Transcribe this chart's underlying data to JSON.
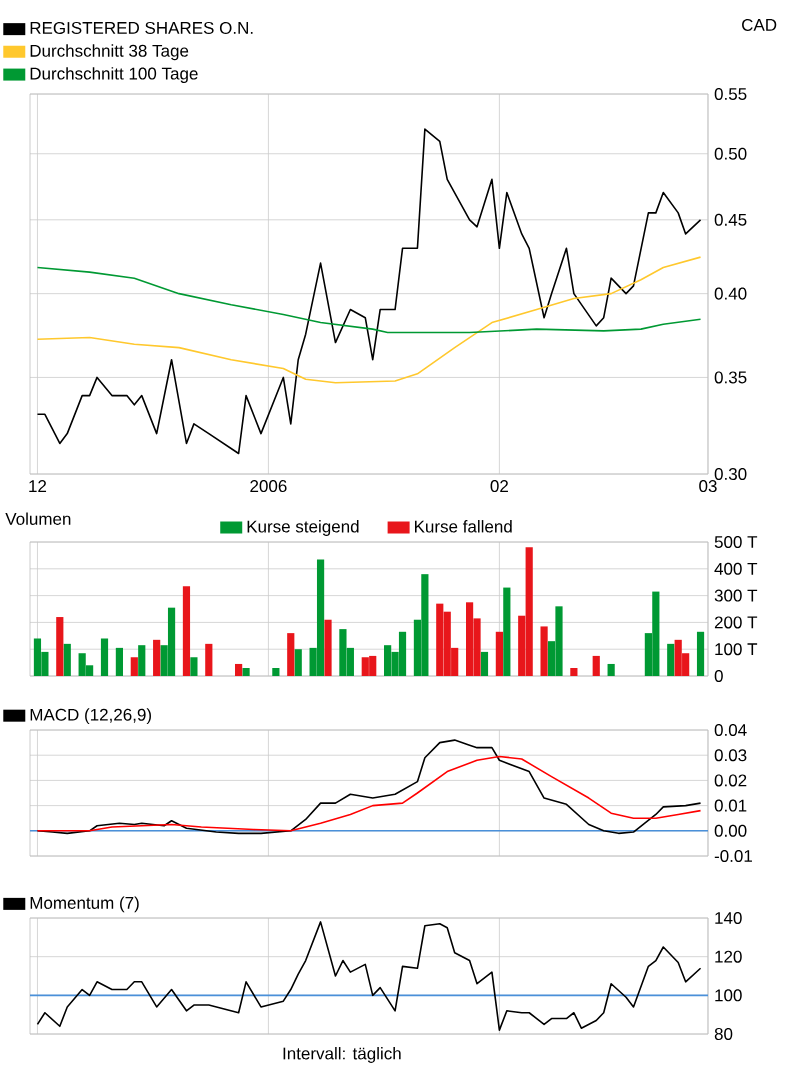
{
  "chart_data": [
    {
      "type": "line",
      "ylabel": "CAD",
      "log": "y",
      "grid": true,
      "legend": "top left",
      "marker": "none",
      "line_style": "solid",
      "xlim": [
        "2005-11-30",
        "2006-03-01"
      ],
      "xticks": [
        {
          "value": "2005-12-01",
          "label": "12"
        },
        {
          "value": "2006-01-01",
          "label": "2006"
        },
        {
          "value": "2006-02-01",
          "label": "02"
        },
        {
          "value": "2006-03-01",
          "label": "03"
        }
      ],
      "ylim": [
        0.3,
        0.55
      ],
      "yticks": [
        {
          "value": 0.3,
          "label": "0.30"
        },
        {
          "value": 0.35,
          "label": "0.35"
        },
        {
          "value": 0.4,
          "label": "0.40"
        },
        {
          "value": 0.45,
          "label": "0.45"
        },
        {
          "value": 0.5,
          "label": "0.50"
        },
        {
          "value": 0.55,
          "label": "0.55"
        }
      ],
      "series": [
        {
          "name": "REGISTERED SHARES O.N.",
          "color": "#000000",
          "x": [
            "2005-12-01",
            "2005-12-02",
            "2005-12-04",
            "2005-12-05",
            "2005-12-07",
            "2005-12-08",
            "2005-12-09",
            "2005-12-11",
            "2005-12-13",
            "2005-12-14",
            "2005-12-15",
            "2005-12-17",
            "2005-12-19",
            "2005-12-21",
            "2005-12-22",
            "2005-12-24",
            "2005-12-28",
            "2005-12-29",
            "2005-12-31",
            "2006-01-03",
            "2006-01-04",
            "2006-01-05",
            "2006-01-06",
            "2006-01-08",
            "2006-01-10",
            "2006-01-12",
            "2006-01-14",
            "2006-01-15",
            "2006-01-16",
            "2006-01-18",
            "2006-01-19",
            "2006-01-21",
            "2006-01-22",
            "2006-01-24",
            "2006-01-25",
            "2006-01-28",
            "2006-01-29",
            "2006-01-31",
            "2006-02-01",
            "2006-02-02",
            "2006-02-04",
            "2006-02-05",
            "2006-02-07",
            "2006-02-08",
            "2006-02-10",
            "2006-02-11",
            "2006-02-14",
            "2006-02-15",
            "2006-02-16",
            "2006-02-18",
            "2006-02-19",
            "2006-02-21",
            "2006-02-22",
            "2006-02-23",
            "2006-02-25",
            "2006-02-26",
            "2006-02-28"
          ],
          "values": [
            0.33,
            0.33,
            0.315,
            0.32,
            0.34,
            0.34,
            0.35,
            0.34,
            0.34,
            0.335,
            0.34,
            0.32,
            0.36,
            0.315,
            0.325,
            0.32,
            0.31,
            0.34,
            0.32,
            0.35,
            0.325,
            0.36,
            0.375,
            0.42,
            0.37,
            0.39,
            0.385,
            0.36,
            0.39,
            0.39,
            0.43,
            0.43,
            0.52,
            0.51,
            0.48,
            0.45,
            0.445,
            0.48,
            0.43,
            0.47,
            0.44,
            0.43,
            0.385,
            0.4,
            0.43,
            0.4,
            0.38,
            0.385,
            0.41,
            0.4,
            0.405,
            0.455,
            0.455,
            0.47,
            0.455,
            0.44,
            0.45
          ]
        },
        {
          "name": "Durchschnitt 38 Tage",
          "color": "#ffc82d",
          "x": [
            "2005-12-01",
            "2005-12-08",
            "2005-12-14",
            "2005-12-20",
            "2005-12-27",
            "2006-01-03",
            "2006-01-06",
            "2006-01-10",
            "2006-01-18",
            "2006-01-21",
            "2006-01-26",
            "2006-01-31",
            "2006-02-06",
            "2006-02-11",
            "2006-02-16",
            "2006-02-20",
            "2006-02-23",
            "2006-02-28"
          ],
          "values": [
            0.372,
            0.373,
            0.369,
            0.367,
            0.36,
            0.355,
            0.349,
            0.347,
            0.348,
            0.352,
            0.367,
            0.382,
            0.39,
            0.397,
            0.4,
            0.409,
            0.417,
            0.424
          ]
        },
        {
          "name": "Durchschnitt 100 Tage",
          "color": "#009933",
          "x": [
            "2005-12-01",
            "2005-12-08",
            "2005-12-14",
            "2005-12-20",
            "2005-12-27",
            "2006-01-03",
            "2006-01-08",
            "2006-01-15",
            "2006-01-17",
            "2006-01-28",
            "2006-02-06",
            "2006-02-15",
            "2006-02-20",
            "2006-02-23",
            "2006-02-28"
          ],
          "values": [
            0.417,
            0.414,
            0.41,
            0.4,
            0.393,
            0.387,
            0.382,
            0.378,
            0.376,
            0.376,
            0.378,
            0.377,
            0.378,
            0.381,
            0.384
          ]
        }
      ]
    },
    {
      "type": "bar",
      "title": "Volumen",
      "grid": true,
      "legend": "top",
      "tick_labels": "y",
      "xlim": [
        "2005-11-30",
        "2006-03-01"
      ],
      "xticks": [
        {
          "value": "2005-12-01",
          "label": null
        },
        {
          "value": "2006-01-01",
          "label": null
        },
        {
          "value": "2006-02-01",
          "label": null
        },
        {
          "value": "2006-03-01",
          "label": null
        }
      ],
      "ylim": [
        0,
        500
      ],
      "yticks": [
        0,
        {
          "value": 100,
          "label": "100 T"
        },
        {
          "value": 200,
          "label": "200 T"
        },
        {
          "value": 300,
          "label": "300 T"
        },
        {
          "value": 400,
          "label": "400 T"
        },
        {
          "value": 500,
          "label": "500 T"
        }
      ],
      "series": [
        {
          "name": "Kurse steigend",
          "color": "#009933",
          "x": [
            "2005-12-01",
            "2005-12-02",
            "2005-12-05",
            "2005-12-07",
            "2005-12-08",
            "2005-12-10",
            "2005-12-12",
            "2005-12-15",
            "2005-12-18",
            "2005-12-19",
            "2005-12-22",
            "2005-12-29",
            "2006-01-02",
            "2006-01-05",
            "2006-01-07",
            "2006-01-08",
            "2006-01-11",
            "2006-01-12",
            "2006-01-17",
            "2006-01-18",
            "2006-01-19",
            "2006-01-21",
            "2006-01-22",
            "2006-01-30",
            "2006-02-02",
            "2006-02-08",
            "2006-02-09",
            "2006-02-16",
            "2006-02-21",
            "2006-02-22",
            "2006-02-24",
            "2006-02-28"
          ],
          "values": [
            140,
            90,
            120,
            85,
            40,
            140,
            105,
            115,
            115,
            255,
            70,
            30,
            30,
            100,
            105,
            435,
            175,
            105,
            115,
            90,
            165,
            210,
            380,
            90,
            330,
            130,
            260,
            45,
            160,
            315,
            120,
            165
          ]
        },
        {
          "name": "Kurse fallend",
          "color": "#e8161b",
          "x": [
            "2005-12-04",
            "2005-12-14",
            "2005-12-17",
            "2005-12-21",
            "2005-12-24",
            "2005-12-28",
            "2006-01-04",
            "2006-01-09",
            "2006-01-14",
            "2006-01-15",
            "2006-01-24",
            "2006-01-25",
            "2006-01-26",
            "2006-01-28",
            "2006-01-29",
            "2006-02-01",
            "2006-02-04",
            "2006-02-05",
            "2006-02-07",
            "2006-02-11",
            "2006-02-14",
            "2006-02-25",
            "2006-02-26"
          ],
          "values": [
            220,
            70,
            135,
            335,
            120,
            45,
            160,
            210,
            70,
            75,
            270,
            240,
            105,
            275,
            215,
            165,
            225,
            480,
            185,
            30,
            75,
            135,
            85
          ]
        }
      ]
    },
    {
      "type": "line",
      "grid": true,
      "legend": "top left",
      "marker": "none",
      "line_style": "solid",
      "tick_labels": "y",
      "xlim": [
        "2005-11-30",
        "2006-03-01"
      ],
      "xticks": [
        {
          "value": "2005-12-01",
          "label": null
        },
        {
          "value": "2006-01-01",
          "label": null
        },
        {
          "value": "2006-02-01",
          "label": null
        },
        {
          "value": "2006-03-01",
          "label": null
        }
      ],
      "ylim": [
        -0.01,
        0.04
      ],
      "yticks": [
        {
          "value": -0.01,
          "label": "-0.01"
        },
        {
          "value": 0,
          "label": "0.00"
        },
        {
          "value": 0.01,
          "label": "0.01"
        },
        {
          "value": 0.02,
          "label": "0.02"
        },
        {
          "value": 0.03,
          "label": "0.03"
        },
        {
          "value": 0.04,
          "label": "0.04"
        }
      ],
      "ref_lines": [
        {
          "axis": "y",
          "value": 0,
          "color": "#4a90d9"
        }
      ],
      "series": [
        {
          "name": "MACD (12,26,9)",
          "color": "#000000",
          "x": [
            "2005-12-01",
            "2005-12-03",
            "2005-12-05",
            "2005-12-08",
            "2005-12-09",
            "2005-12-12",
            "2005-12-14",
            "2005-12-15",
            "2005-12-18",
            "2005-12-19",
            "2005-12-21",
            "2005-12-25",
            "2005-12-28",
            "2005-12-31",
            "2006-01-04",
            "2006-01-06",
            "2006-01-08",
            "2006-01-10",
            "2006-01-12",
            "2006-01-15",
            "2006-01-18",
            "2006-01-21",
            "2006-01-22",
            "2006-01-24",
            "2006-01-26",
            "2006-01-28",
            "2006-01-29",
            "2006-01-31",
            "2006-02-01",
            "2006-02-05",
            "2006-02-07",
            "2006-02-10",
            "2006-02-13",
            "2006-02-15",
            "2006-02-17",
            "2006-02-19",
            "2006-02-22",
            "2006-02-23",
            "2006-02-26",
            "2006-02-28"
          ],
          "values": [
            0,
            -0.0005,
            -0.001,
            0,
            0.002,
            0.003,
            0.0025,
            0.003,
            0.002,
            0.004,
            0.001,
            -0.0005,
            -0.001,
            -0.001,
            0,
            0.0045,
            0.011,
            0.011,
            0.0145,
            0.013,
            0.0145,
            0.0195,
            0.029,
            0.035,
            0.036,
            0.034,
            0.033,
            0.033,
            0.028,
            0.0235,
            0.013,
            0.0105,
            0.0025,
            0,
            -0.001,
            -0.0005,
            0.0065,
            0.0095,
            0.01,
            0.011
          ]
        },
        {
          "color": "#ff0000",
          "x": [
            "2005-12-01",
            "2005-12-08",
            "2005-12-11",
            "2005-12-19",
            "2005-12-23",
            "2005-12-30",
            "2006-01-04",
            "2006-01-08",
            "2006-01-12",
            "2006-01-15",
            "2006-01-19",
            "2006-01-21",
            "2006-01-25",
            "2006-01-29",
            "2006-02-01",
            "2006-02-04",
            "2006-02-08",
            "2006-02-13",
            "2006-02-16",
            "2006-02-19",
            "2006-02-22",
            "2006-02-25",
            "2006-02-28"
          ],
          "values": [
            0,
            0,
            0.0015,
            0.0025,
            0.0015,
            0.0005,
            0,
            0.003,
            0.0065,
            0.01,
            0.011,
            0.015,
            0.0235,
            0.028,
            0.0295,
            0.0285,
            0.0215,
            0.013,
            0.007,
            0.005,
            0.005,
            0.0065,
            0.008
          ]
        }
      ]
    },
    {
      "type": "line",
      "grid": true,
      "legend": "top left",
      "marker": "none",
      "line_style": "solid",
      "tick_labels": "y",
      "annotations": [
        "Intervall: täglich"
      ],
      "xlim": [
        "2005-11-30",
        "2006-03-01"
      ],
      "xticks": [
        {
          "value": "2005-12-01",
          "label": null
        },
        {
          "value": "2006-01-01",
          "label": null
        },
        {
          "value": "2006-02-01",
          "label": null
        },
        {
          "value": "2006-03-01",
          "label": null
        }
      ],
      "ylim": [
        80,
        140
      ],
      "yticks": [
        80,
        100,
        120,
        140
      ],
      "ref_lines": [
        {
          "axis": "y",
          "value": 100,
          "color": "#4a90d9"
        }
      ],
      "series": [
        {
          "name": "Momentum (7)",
          "color": "#000000",
          "x": [
            "2005-12-01",
            "2005-12-02",
            "2005-12-04",
            "2005-12-05",
            "2005-12-07",
            "2005-12-08",
            "2005-12-09",
            "2005-12-11",
            "2005-12-13",
            "2005-12-14",
            "2005-12-15",
            "2005-12-17",
            "2005-12-19",
            "2005-12-21",
            "2005-12-22",
            "2005-12-24",
            "2005-12-28",
            "2005-12-29",
            "2005-12-31",
            "2006-01-03",
            "2006-01-04",
            "2006-01-05",
            "2006-01-06",
            "2006-01-08",
            "2006-01-10",
            "2006-01-11",
            "2006-01-12",
            "2006-01-14",
            "2006-01-15",
            "2006-01-16",
            "2006-01-18",
            "2006-01-19",
            "2006-01-21",
            "2006-01-22",
            "2006-01-24",
            "2006-01-25",
            "2006-01-26",
            "2006-01-28",
            "2006-01-29",
            "2006-01-31",
            "2006-02-01",
            "2006-02-02",
            "2006-02-04",
            "2006-02-05",
            "2006-02-07",
            "2006-02-08",
            "2006-02-10",
            "2006-02-11",
            "2006-02-12",
            "2006-02-14",
            "2006-02-15",
            "2006-02-16",
            "2006-02-18",
            "2006-02-19",
            "2006-02-21",
            "2006-02-22",
            "2006-02-23",
            "2006-02-25",
            "2006-02-26",
            "2006-02-28"
          ],
          "values": [
            85,
            91,
            84,
            94,
            103,
            100,
            107,
            103,
            103,
            107,
            107,
            94,
            103,
            92,
            95,
            95,
            91,
            107,
            94,
            97,
            103,
            111,
            118,
            138,
            110,
            118,
            112,
            116,
            100,
            104,
            92,
            115,
            114,
            136,
            137,
            135,
            122,
            118,
            106,
            112,
            82,
            92,
            91,
            91,
            85,
            88,
            88,
            91,
            83,
            87,
            91,
            106,
            99,
            94,
            115,
            118,
            125,
            117,
            107,
            114
          ]
        }
      ]
    }
  ]
}
